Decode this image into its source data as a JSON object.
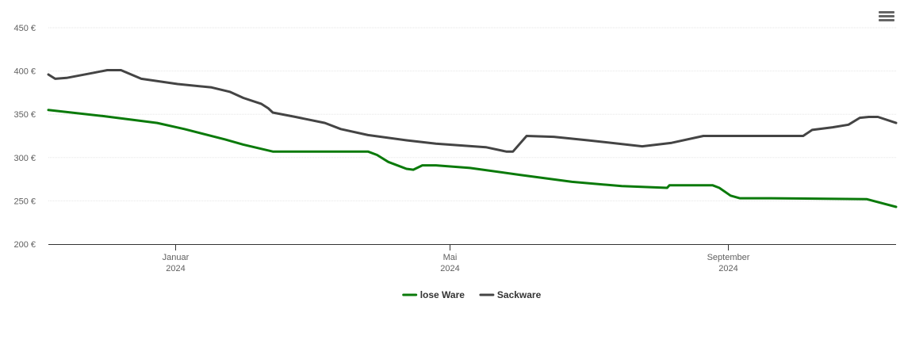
{
  "menu_icon": "hamburger-menu-icon",
  "chart_data": {
    "type": "line",
    "x_type": "date",
    "xlim": [
      "2023-11-06",
      "2024-11-14"
    ],
    "ylim": [
      200,
      450
    ],
    "y_ticks": [
      "200 €",
      "250 €",
      "300 €",
      "350 €",
      "400 €",
      "450 €"
    ],
    "y_tick_values": [
      200,
      250,
      300,
      350,
      400,
      450
    ],
    "x_ticks": [
      {
        "date": "2024-01-01",
        "label": "Januar",
        "year": "2024"
      },
      {
        "date": "2024-05-01",
        "label": "Mai",
        "year": "2024"
      },
      {
        "date": "2024-09-01",
        "label": "September",
        "year": "2024"
      }
    ],
    "grid": true,
    "legend_position": "bottom-center",
    "series": [
      {
        "name": "lose Ware",
        "color": "#0a7a0a",
        "points": [
          [
            "2023-11-06",
            355
          ],
          [
            "2023-11-30",
            348
          ],
          [
            "2023-12-24",
            340
          ],
          [
            "2024-01-05",
            333
          ],
          [
            "2024-01-23",
            321
          ],
          [
            "2024-01-31",
            315
          ],
          [
            "2024-02-13",
            307
          ],
          [
            "2024-03-03",
            307
          ],
          [
            "2024-03-26",
            307
          ],
          [
            "2024-03-30",
            303
          ],
          [
            "2024-04-04",
            295
          ],
          [
            "2024-04-12",
            287
          ],
          [
            "2024-04-15",
            286
          ],
          [
            "2024-04-19",
            291
          ],
          [
            "2024-04-25",
            291
          ],
          [
            "2024-05-10",
            288
          ],
          [
            "2024-06-01",
            280
          ],
          [
            "2024-06-24",
            272
          ],
          [
            "2024-07-16",
            267
          ],
          [
            "2024-08-05",
            265
          ],
          [
            "2024-08-06",
            268
          ],
          [
            "2024-08-25",
            268
          ],
          [
            "2024-08-28",
            265
          ],
          [
            "2024-09-02",
            256
          ],
          [
            "2024-09-06",
            253
          ],
          [
            "2024-09-20",
            253
          ],
          [
            "2024-11-01",
            252
          ],
          [
            "2024-11-14",
            243
          ]
        ]
      },
      {
        "name": "Sackware",
        "color": "#444444",
        "points": [
          [
            "2023-11-06",
            396
          ],
          [
            "2023-11-09",
            391
          ],
          [
            "2023-11-14",
            392
          ],
          [
            "2023-11-26",
            398
          ],
          [
            "2023-12-02",
            401
          ],
          [
            "2023-12-08",
            401
          ],
          [
            "2023-12-17",
            391
          ],
          [
            "2024-01-02",
            385
          ],
          [
            "2024-01-17",
            381
          ],
          [
            "2024-01-25",
            376
          ],
          [
            "2024-01-31",
            369
          ],
          [
            "2024-02-08",
            362
          ],
          [
            "2024-02-11",
            357
          ],
          [
            "2024-02-13",
            352
          ],
          [
            "2024-02-23",
            347
          ],
          [
            "2024-03-07",
            340
          ],
          [
            "2024-03-14",
            333
          ],
          [
            "2024-03-26",
            326
          ],
          [
            "2024-04-12",
            320
          ],
          [
            "2024-04-25",
            316
          ],
          [
            "2024-05-17",
            312
          ],
          [
            "2024-05-26",
            307
          ],
          [
            "2024-05-29",
            307
          ],
          [
            "2024-06-04",
            325
          ],
          [
            "2024-06-16",
            324
          ],
          [
            "2024-07-01",
            320
          ],
          [
            "2024-07-25",
            313
          ],
          [
            "2024-08-07",
            317
          ],
          [
            "2024-08-21",
            325
          ],
          [
            "2024-08-28",
            325
          ],
          [
            "2024-09-01",
            325
          ],
          [
            "2024-10-04",
            325
          ],
          [
            "2024-10-08",
            332
          ],
          [
            "2024-10-17",
            335
          ],
          [
            "2024-10-24",
            338
          ],
          [
            "2024-10-29",
            346
          ],
          [
            "2024-11-02",
            347
          ],
          [
            "2024-11-06",
            347
          ],
          [
            "2024-11-14",
            340
          ]
        ]
      }
    ]
  }
}
